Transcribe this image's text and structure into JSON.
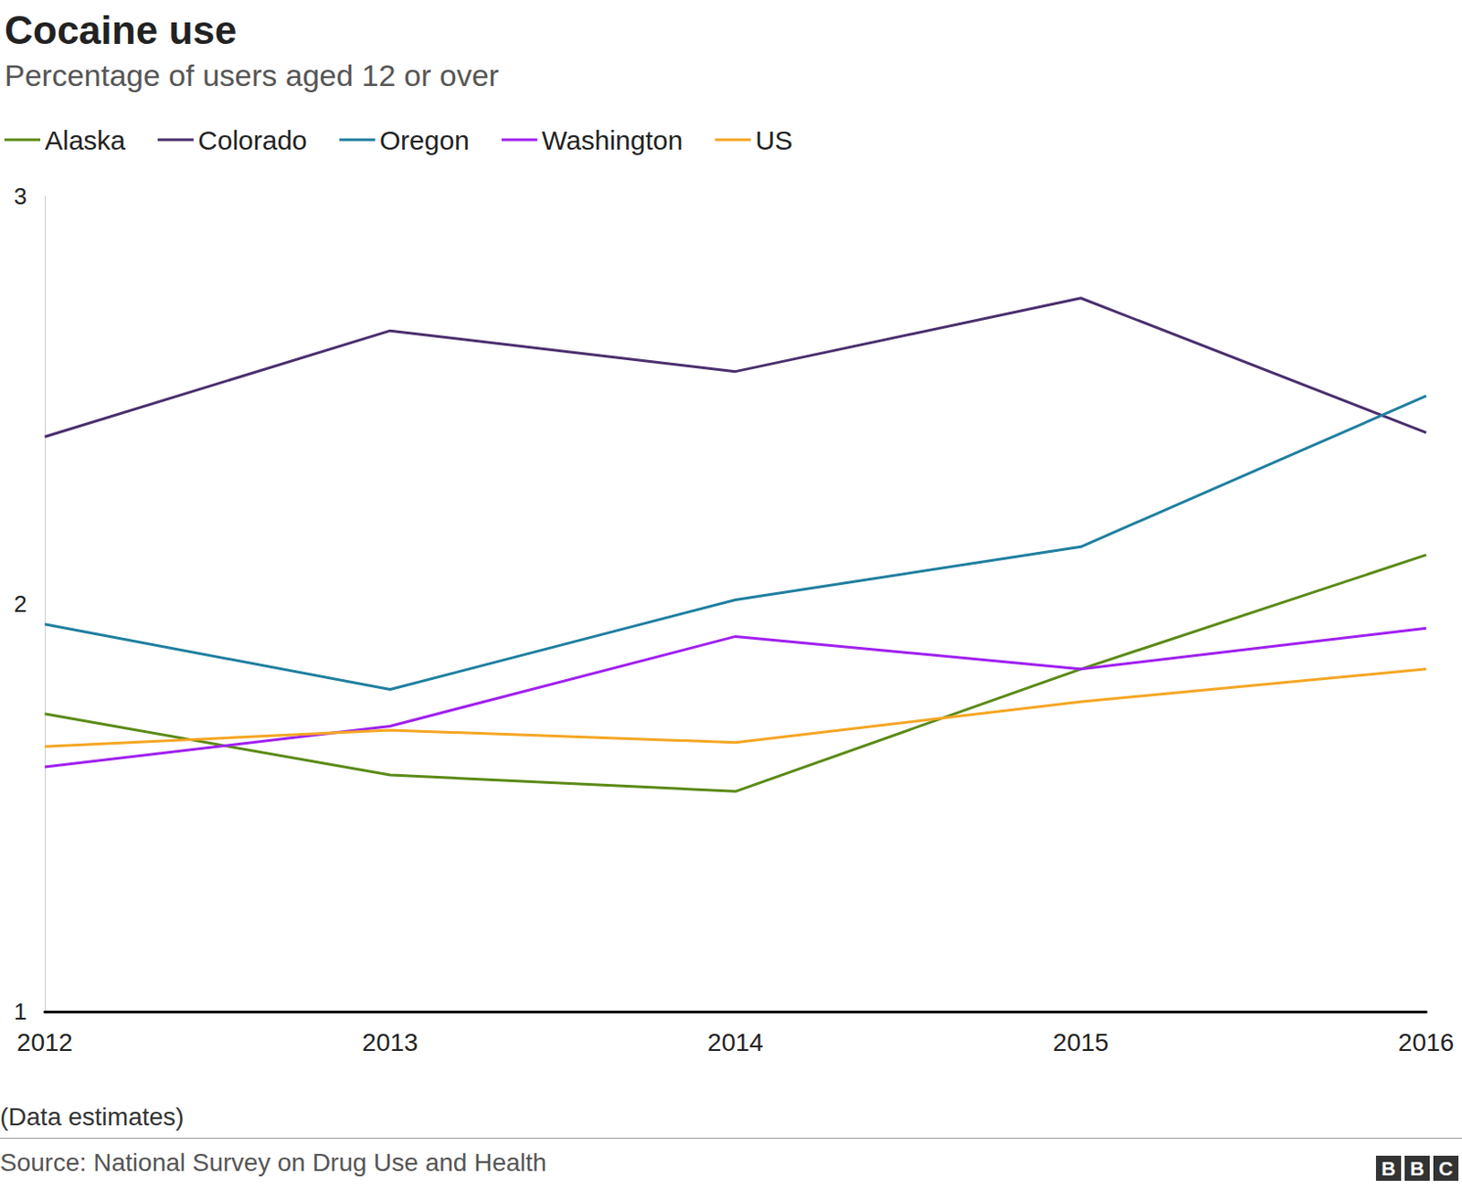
{
  "chart_data": {
    "type": "line",
    "title": "Cocaine use",
    "subtitle": "Percentage of users aged 12 or over",
    "note": "(Data estimates)",
    "source": "Source: National Survey on Drug Use and Health",
    "logo": "BBC",
    "categories": [
      "2012",
      "2013",
      "2014",
      "2015",
      "2016"
    ],
    "series": [
      {
        "name": "Alaska",
        "color": "#5b8a16",
        "values": [
          1.73,
          1.58,
          1.54,
          1.84,
          2.12
        ]
      },
      {
        "name": "Colorado",
        "color": "#4a2f6e",
        "values": [
          2.41,
          2.67,
          2.57,
          2.75,
          2.42
        ]
      },
      {
        "name": "Oregon",
        "color": "#1f7fa0",
        "values": [
          1.95,
          1.79,
          2.01,
          2.14,
          2.51
        ]
      },
      {
        "name": "Washington",
        "color": "#a020f0",
        "values": [
          1.6,
          1.7,
          1.92,
          1.84,
          1.94
        ]
      },
      {
        "name": "US",
        "color": "#f5a623",
        "values": [
          1.65,
          1.69,
          1.66,
          1.76,
          1.84
        ]
      }
    ],
    "ylim": [
      1,
      3
    ],
    "yticks": [
      1,
      2,
      3
    ],
    "grid": false,
    "legend": "top-left"
  }
}
